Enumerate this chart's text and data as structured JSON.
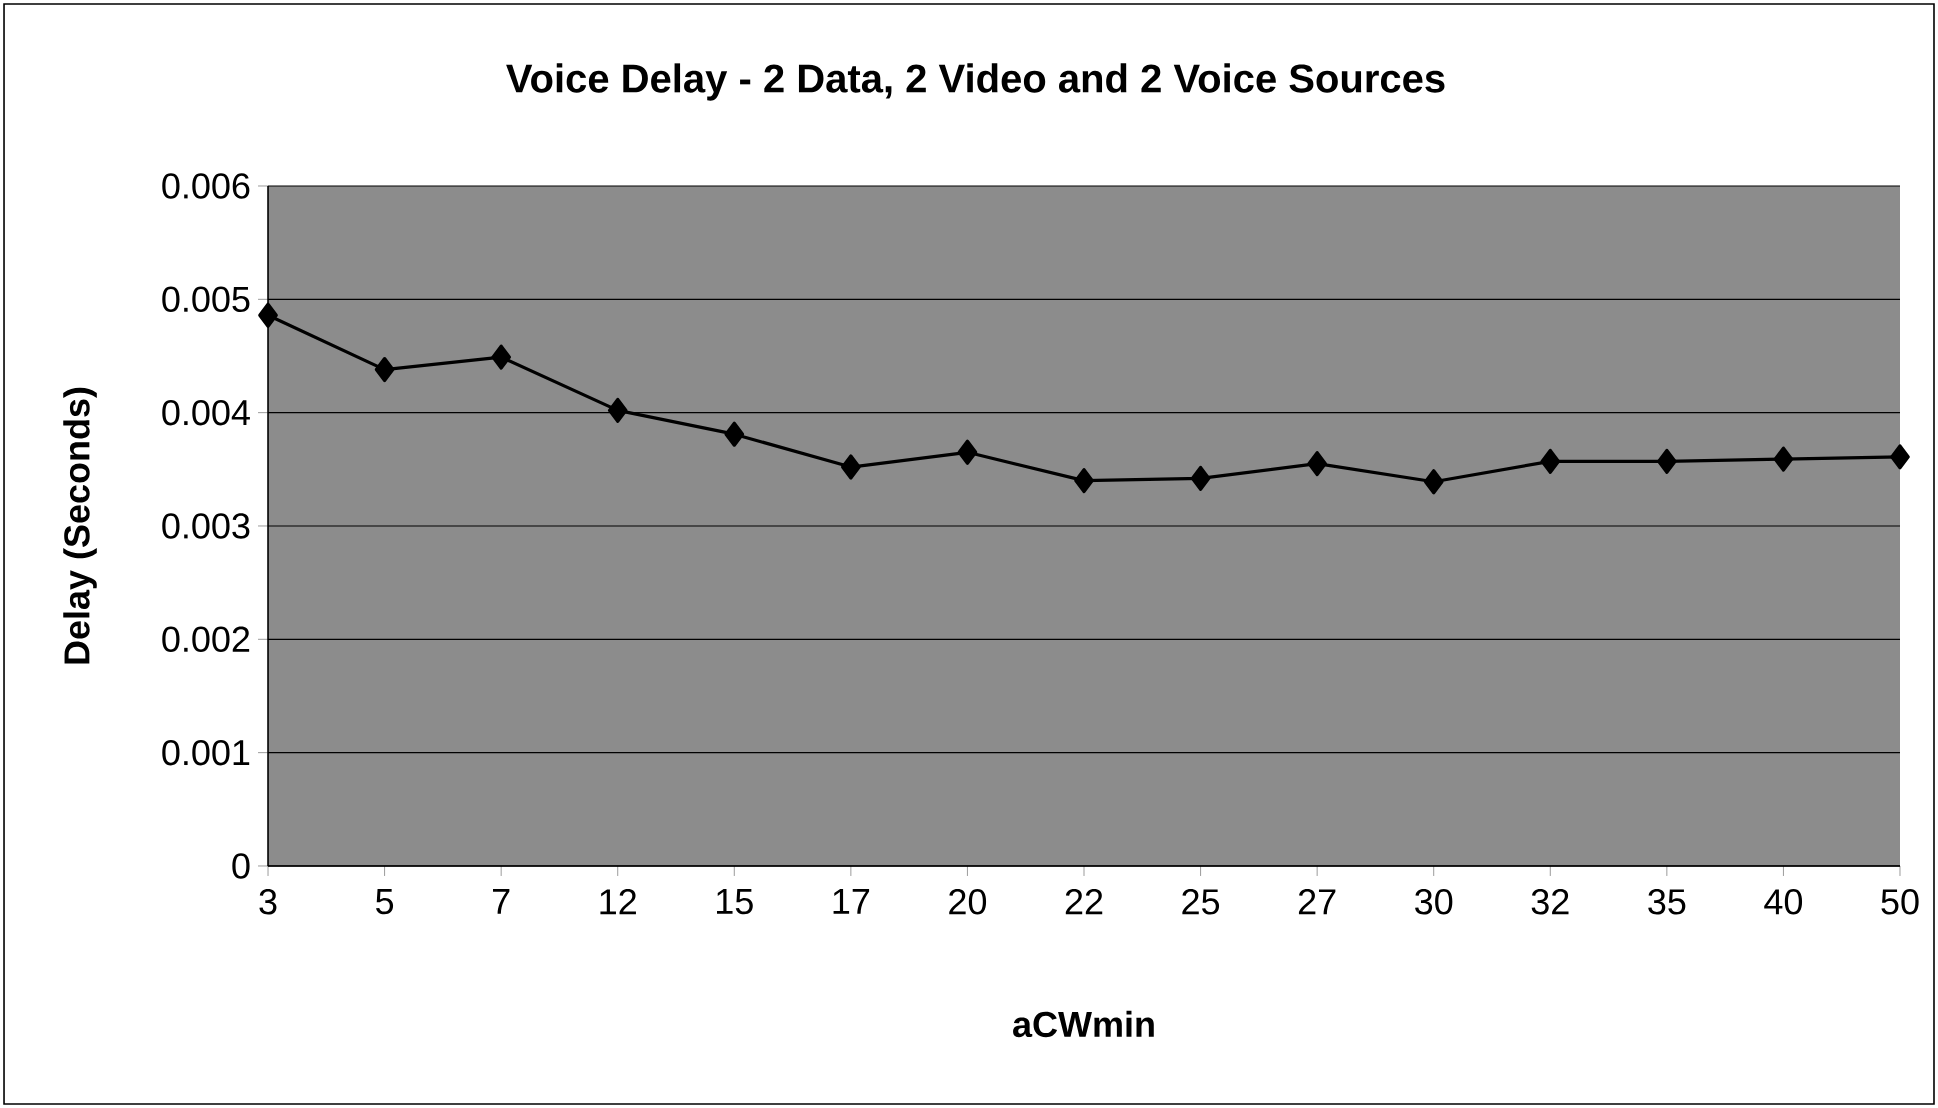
{
  "chart_data": {
    "type": "line",
    "title": "Voice Delay - 2 Data, 2 Video and 2 Voice Sources",
    "xlabel": "aCWmin",
    "ylabel": "Delay (Seconds)",
    "categories": [
      "3",
      "5",
      "7",
      "12",
      "15",
      "17",
      "20",
      "22",
      "25",
      "27",
      "30",
      "32",
      "35",
      "40",
      "50"
    ],
    "series": [
      {
        "color": "#000000",
        "values": [
          0.00486,
          0.00438,
          0.00449,
          0.00402,
          0.00381,
          0.00352,
          0.00365,
          0.0034,
          0.00342,
          0.00355,
          0.00339,
          0.00357,
          0.00357,
          0.00359,
          0.00361
        ]
      }
    ],
    "ylim": [
      0,
      0.006
    ],
    "yticks": [
      0,
      0.001,
      0.002,
      0.003,
      0.004,
      0.005,
      0.006
    ],
    "grid": "y",
    "marker": "diamond",
    "line_style": "solid"
  }
}
